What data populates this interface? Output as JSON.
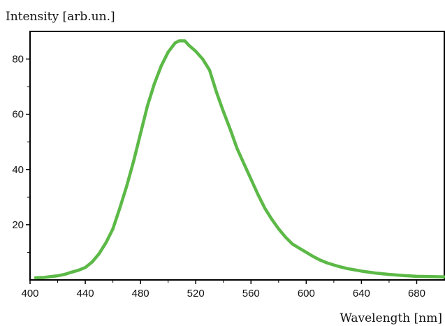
{
  "chart_data": {
    "type": "line",
    "title": "",
    "ylabel": "Intensity [arb.un.]",
    "xlabel": "Wavelength  [nm]",
    "xlim": [
      400,
      700
    ],
    "ylim": [
      0,
      90
    ],
    "grid": false,
    "xticks": [
      400,
      440,
      480,
      520,
      560,
      600,
      640,
      680
    ],
    "yticks": [
      20,
      40,
      60,
      80
    ],
    "series": [
      {
        "color": "#5cb947",
        "x": [
          404,
          410,
          415,
          420,
          425,
          430,
          435,
          440,
          445,
          450,
          455,
          460,
          465,
          470,
          475,
          480,
          485,
          490,
          495,
          500,
          505,
          508,
          512,
          515,
          520,
          525,
          530,
          535,
          540,
          545,
          550,
          555,
          560,
          565,
          570,
          575,
          580,
          585,
          590,
          595,
          600,
          605,
          610,
          615,
          620,
          625,
          630,
          640,
          650,
          660,
          670,
          680,
          690,
          700
        ],
        "y": [
          0.8,
          0.9,
          1.2,
          1.5,
          2.0,
          2.8,
          3.5,
          4.5,
          6.5,
          9.5,
          13.5,
          18.5,
          26.0,
          34.0,
          43.0,
          53.0,
          63.0,
          71.0,
          77.5,
          82.5,
          85.8,
          86.6,
          86.6,
          85.0,
          82.8,
          80.0,
          76.0,
          68.0,
          61.0,
          54.5,
          47.5,
          42.0,
          36.5,
          31.0,
          26.0,
          22.0,
          18.5,
          15.5,
          13.0,
          11.5,
          10.0,
          8.5,
          7.2,
          6.2,
          5.4,
          4.7,
          4.1,
          3.2,
          2.5,
          2.0,
          1.6,
          1.3,
          1.2,
          1.1
        ]
      }
    ]
  }
}
